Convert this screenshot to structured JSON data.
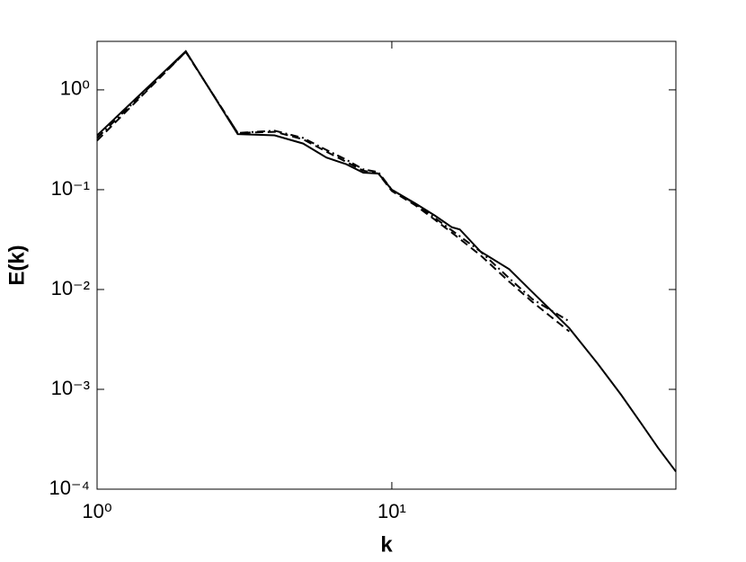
{
  "chart_data": {
    "type": "line",
    "x_label": "k",
    "y_label": "E(k)",
    "x_log": true,
    "y_log": true,
    "xlim": [
      1,
      92
    ],
    "ylim": [
      0.0001,
      3.06
    ],
    "xticks": [
      {
        "value": 1,
        "label": "10⁰"
      },
      {
        "value": 10,
        "label": "10¹"
      }
    ],
    "yticks": [
      {
        "value": 0.0001,
        "label": "10⁻⁴"
      },
      {
        "value": 0.001,
        "label": "10⁻³"
      },
      {
        "value": 0.01,
        "label": "10⁻²"
      },
      {
        "value": 0.1,
        "label": "10⁻¹"
      },
      {
        "value": 1,
        "label": "10⁰"
      }
    ],
    "series": [
      {
        "color": "#000000",
        "dash": "none",
        "x": [
          1,
          2,
          3,
          4,
          5,
          6,
          7,
          8,
          9,
          10,
          12,
          14,
          16,
          17,
          20,
          25,
          30,
          40,
          50,
          60,
          70,
          80,
          92
        ],
        "values": [
          0.35,
          2.44,
          0.36,
          0.35,
          0.29,
          0.21,
          0.18,
          0.148,
          0.145,
          0.1,
          0.073,
          0.055,
          0.042,
          0.04,
          0.024,
          0.016,
          0.0094,
          0.0041,
          0.0018,
          0.00088,
          0.00046,
          0.00026,
          0.00015
        ]
      },
      {
        "color": "#000000",
        "dash": "9,5",
        "x": [
          1,
          2,
          3,
          4,
          5,
          6,
          7,
          8,
          9,
          10,
          12,
          14,
          16,
          20,
          25,
          30,
          40
        ],
        "values": [
          0.31,
          2.4,
          0.37,
          0.38,
          0.32,
          0.24,
          0.19,
          0.155,
          0.145,
          0.097,
          0.07,
          0.05,
          0.037,
          0.022,
          0.012,
          0.0075,
          0.0038
        ]
      },
      {
        "color": "#000000",
        "dash": "9,4,2,4",
        "x": [
          1,
          2,
          3,
          4,
          5,
          6,
          7,
          8,
          9,
          10,
          12,
          14,
          16,
          20,
          25,
          30,
          40
        ],
        "values": [
          0.33,
          2.4,
          0.37,
          0.39,
          0.33,
          0.25,
          0.2,
          0.16,
          0.15,
          0.1,
          0.072,
          0.052,
          0.039,
          0.024,
          0.013,
          0.008,
          0.0048
        ]
      }
    ]
  }
}
